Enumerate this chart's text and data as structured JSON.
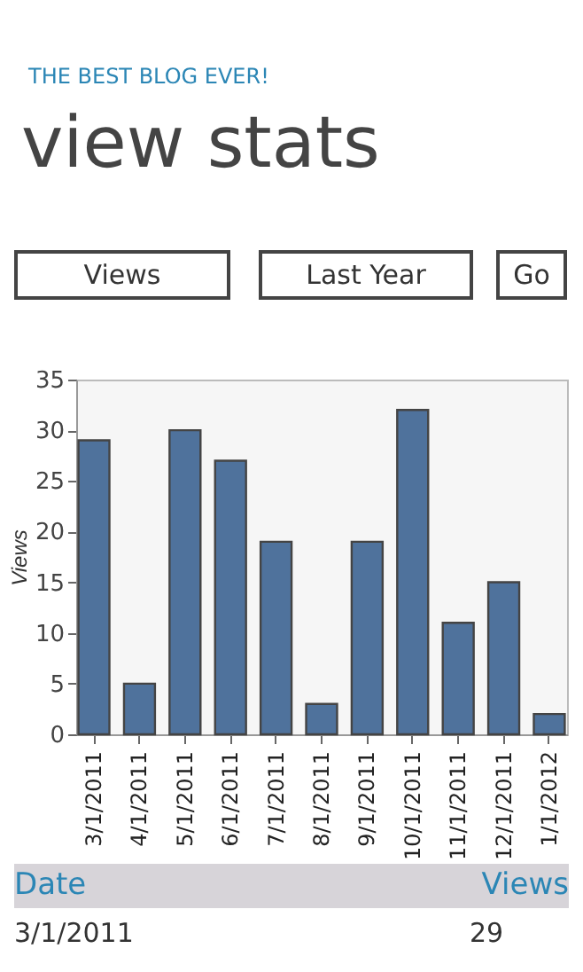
{
  "chart_data": {
    "type": "bar",
    "title": "view stats",
    "subtitle": "THE BEST BLOG EVER!",
    "ylabel": "Views",
    "annotations": [
      "Views",
      "Last Year",
      "Go",
      "Date",
      "Views",
      "3/1/2011",
      "29"
    ],
    "categories": [
      "3/1/2011",
      "4/1/2011",
      "5/1/2011",
      "6/1/2011",
      "7/1/2011",
      "8/1/2011",
      "9/1/2011",
      "10/1/2011",
      "11/1/2011",
      "12/1/2011",
      "1/1/2012"
    ],
    "values": [
      29,
      5,
      30,
      27,
      19,
      3,
      19,
      32,
      11,
      15,
      2
    ],
    "color": "#4f729c",
    "ylim": [
      0,
      35
    ],
    "yticks": [
      0,
      5,
      10,
      15,
      20,
      25,
      30,
      35
    ],
    "grid": false
  }
}
